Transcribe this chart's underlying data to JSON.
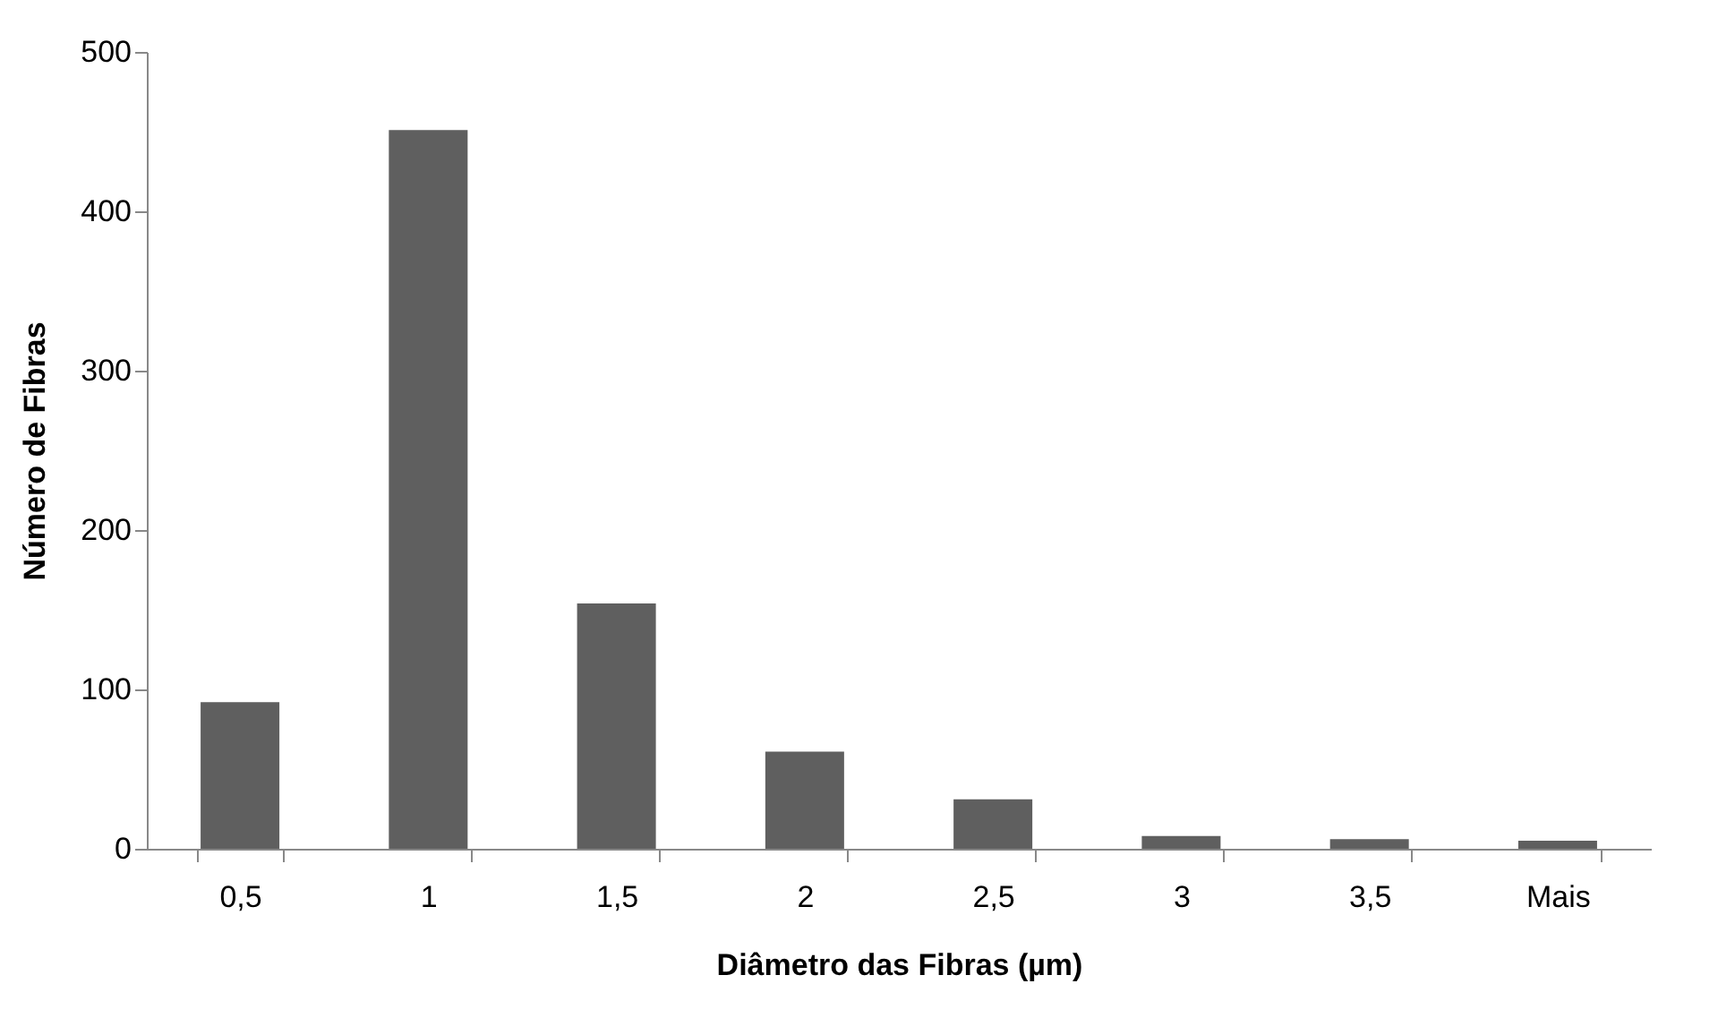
{
  "chart_data": {
    "type": "bar",
    "xlabel": "Diâmetro das Fibras (µm)",
    "ylabel": "Número de Fibras",
    "categories": [
      "0,5",
      "1",
      "1,5",
      "2",
      "2,5",
      "3",
      "3,5",
      "Mais"
    ],
    "values": [
      92,
      451,
      154,
      61,
      31,
      8,
      6,
      5
    ],
    "color": "#5f5f5f",
    "ylim": [
      0,
      500
    ],
    "yticks": [
      0,
      100,
      200,
      300,
      400,
      500
    ],
    "grid": false
  }
}
